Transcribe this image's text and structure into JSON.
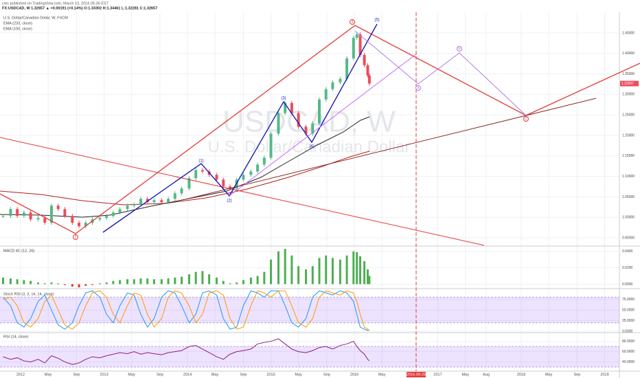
{
  "header": {
    "publisher": "cmc published on TradingView.com, March 10, 2016 05:36 EST",
    "symbol_line": "FX:USDCAD, W 1.32657 ▲ +0.00191 (+0.14%) O:1.33302 H:1.34461 L:1.32281 C:1.32657"
  },
  "legend": [
    "U.S. Dollar/Canadian Dollar, W, FXCM",
    "EMA (233, close)",
    "EMA (100, close)"
  ],
  "watermark": {
    "symbol": "USDCAD, W",
    "description": "U.S. Dollar/Canadian Dollar"
  },
  "wave_labels": [
    "2",
    "(1)",
    "(2)",
    "(3)",
    "(4)",
    "3",
    "(5)",
    "A",
    "B",
    "C"
  ],
  "chart_data": {
    "type": "candlestick",
    "xlim": [
      2011.753,
      2019.16
    ],
    "xticks": [
      2012,
      {
        "value": 2012.33,
        "label": "May"
      },
      {
        "value": 2012.67,
        "label": "Sep"
      },
      2013,
      {
        "value": 2013.33,
        "label": "May"
      },
      {
        "value": 2013.67,
        "label": "Sep"
      },
      2014,
      {
        "value": 2014.33,
        "label": "May"
      },
      {
        "value": 2014.67,
        "label": "Sep"
      },
      2015,
      {
        "value": 2015.33,
        "label": "May"
      },
      {
        "value": 2015.67,
        "label": "Sep"
      },
      2016,
      {
        "value": 2016.33,
        "label": "May"
      },
      {
        "value": 2016.74,
        "label": "2016-09-28"
      },
      2017,
      {
        "value": 2017.33,
        "label": "May"
      },
      {
        "value": 2017.58,
        "label": "Aug"
      },
      2018,
      {
        "value": 2018.33,
        "label": "May"
      },
      {
        "value": 2018.67,
        "label": "Sep"
      },
      2019
    ],
    "x": [
      2011.79,
      2011.88,
      2011.96,
      2012.04,
      2012.12,
      2012.21,
      2012.29,
      2012.37,
      2012.45,
      2012.53,
      2012.62,
      2012.7,
      2012.78,
      2012.86,
      2012.95,
      2013.03,
      2013.11,
      2013.19,
      2013.28,
      2013.36,
      2013.44,
      2013.52,
      2013.6,
      2013.69,
      2013.77,
      2013.85,
      2013.93,
      2014.02,
      2014.1,
      2014.18,
      2014.26,
      2014.35,
      2014.43,
      2014.51,
      2014.59,
      2014.67,
      2014.76,
      2014.84,
      2014.92,
      2015.0,
      2015.09,
      2015.17,
      2015.25,
      2015.33,
      2015.42,
      2015.5,
      2015.58,
      2015.66,
      2015.74,
      2015.83,
      2015.91,
      2015.99,
      2016.03,
      2016.07,
      2016.12,
      2016.16,
      2016.18
    ],
    "close": [
      1.0035,
      1.0202,
      1.0035,
      1.0119,
      0.9951,
      0.9985,
      0.9868,
      1.0286,
      1.0202,
      1.0035,
      0.9868,
      0.9784,
      0.9868,
      0.9951,
      0.9985,
      1.0035,
      1.0119,
      1.0202,
      1.0286,
      1.0319,
      1.0453,
      1.037,
      1.042,
      1.037,
      1.0453,
      1.0587,
      1.0704,
      1.0955,
      1.1154,
      1.112,
      1.1038,
      1.0921,
      1.0754,
      1.0704,
      1.0921,
      1.1038,
      1.112,
      1.1288,
      1.1455,
      1.2042,
      1.2543,
      1.2794,
      1.2543,
      1.2209,
      1.2042,
      1.2293,
      1.2878,
      1.3129,
      1.3296,
      1.338,
      1.388,
      1.4383,
      1.4466,
      1.3965,
      1.3714,
      1.3463,
      1.3266
    ],
    "ylim": [
      0.93,
      1.5003
    ],
    "yticks": [
      {
        "value": 1.45,
        "label": "1.45000"
      },
      {
        "value": 1.4,
        "label": "1.40000"
      },
      {
        "value": 1.35,
        "label": "1.35000"
      },
      {
        "value": 1.3,
        "label": "1.30000"
      },
      {
        "value": 1.25,
        "label": "1.25000"
      },
      {
        "value": 1.2,
        "label": "1.20000"
      },
      {
        "value": 1.15,
        "label": "1.15000"
      },
      {
        "value": 1.1,
        "label": "1.10000"
      },
      {
        "value": 1.05,
        "label": "1.05000"
      },
      {
        "value": 1.0,
        "label": "1.00000"
      },
      {
        "value": 0.95,
        "label": "0.95000"
      }
    ],
    "last_price": {
      "value": 1.32657,
      "label": "1.32657"
    },
    "up_color": "#53b987",
    "down_color": "#eb4d5c",
    "macd": {
      "title": "MACD 4C (12, 26)",
      "color": "#4caf50",
      "values": [
        0.008,
        0.007,
        0.006,
        0.005,
        0.004,
        0.002,
        0.001,
        0.002,
        0.001,
        -0.001,
        -0.003,
        -0.004,
        -0.002,
        -0.001,
        0.001,
        0.002,
        0.004,
        0.005,
        0.006,
        0.006,
        0.007,
        0.007,
        0.006,
        0.006,
        0.007,
        0.008,
        0.009,
        0.012,
        0.015,
        0.016,
        0.012,
        0.008,
        0.004,
        0.001,
        0.002,
        0.005,
        0.008,
        0.01,
        0.015,
        0.03,
        0.04,
        0.043,
        0.035,
        0.022,
        0.018,
        0.022,
        0.032,
        0.035,
        0.032,
        0.03,
        0.035,
        0.04,
        0.039,
        0.034,
        0.028,
        0.018,
        0.01
      ],
      "ylim": [
        -0.0055,
        0.0465
      ],
      "yticks": [
        {
          "value": 0.04,
          "label": "0.0400"
        },
        {
          "value": 0.02,
          "label": "0.0200"
        },
        {
          "value": 0,
          "label": "0.0000"
        }
      ]
    },
    "stoch": {
      "title": "Stoch RSI (3, 3, 14, 14, close)",
      "band": [
        20,
        80
      ],
      "series": [
        {
          "color": "#2196f3",
          "values": [
            80,
            60,
            20,
            10,
            30,
            70,
            85,
            50,
            15,
            5,
            20,
            60,
            90,
            95,
            80,
            40,
            20,
            60,
            90,
            85,
            40,
            10,
            30,
            80,
            95,
            90,
            60,
            20,
            40,
            90,
            95,
            85,
            30,
            5,
            10,
            60,
            95,
            90,
            80,
            95,
            95,
            60,
            20,
            10,
            30,
            80,
            95,
            90,
            85,
            95,
            90,
            70,
            40,
            10,
            5,
            2,
            3
          ]
        },
        {
          "color": "#ff9800",
          "values": [
            75,
            80,
            60,
            20,
            10,
            30,
            70,
            85,
            50,
            15,
            5,
            20,
            60,
            90,
            95,
            80,
            40,
            20,
            60,
            90,
            85,
            40,
            10,
            30,
            80,
            95,
            90,
            60,
            20,
            40,
            90,
            95,
            85,
            30,
            5,
            10,
            60,
            95,
            90,
            80,
            95,
            95,
            60,
            20,
            10,
            30,
            80,
            95,
            90,
            85,
            95,
            90,
            70,
            40,
            10,
            5,
            2
          ]
        }
      ],
      "ylim": [
        -3,
        100
      ],
      "yticks": [
        {
          "value": 75,
          "label": "75.0000"
        },
        {
          "value": 50,
          "label": "50.0000"
        },
        {
          "value": 25,
          "label": "25.0000"
        },
        {
          "value": 0,
          "label": "0.0000"
        }
      ]
    },
    "rsi": {
      "title": "RSI (14, close)",
      "color": "#8e1c7f",
      "band": [
        30,
        70
      ],
      "values": [
        50,
        45,
        48,
        42,
        40,
        45,
        38,
        52,
        47,
        40,
        35,
        38,
        45,
        50,
        48,
        52,
        55,
        58,
        56,
        60,
        55,
        58,
        56,
        54,
        58,
        60,
        62,
        70,
        72,
        65,
        58,
        50,
        45,
        55,
        60,
        62,
        65,
        75,
        78,
        80,
        85,
        75,
        65,
        60,
        58,
        62,
        68,
        70,
        65,
        72,
        75,
        80,
        70,
        62,
        55,
        45,
        42
      ],
      "ylim": [
        22,
        97
      ],
      "yticks": [
        {
          "value": 80,
          "label": "80.0000"
        },
        {
          "value": 60,
          "label": "60.0000"
        },
        {
          "value": 40,
          "label": "40.0000"
        }
      ]
    }
  }
}
